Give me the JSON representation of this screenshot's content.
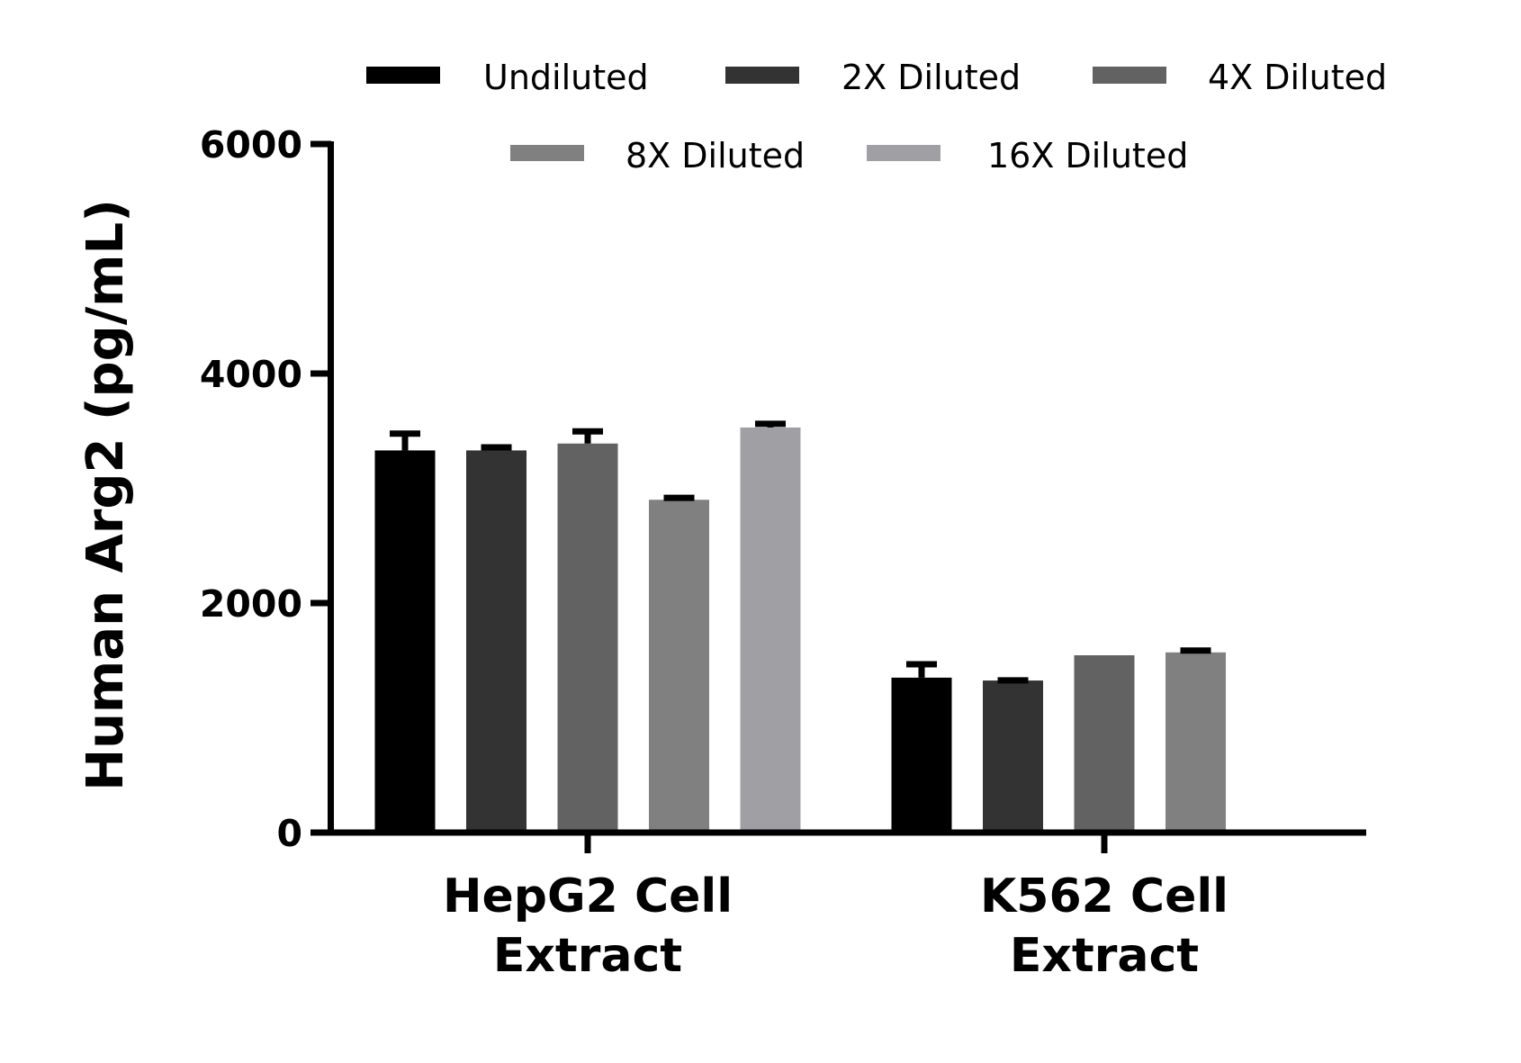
{
  "chart_data": {
    "type": "bar",
    "title": "",
    "xlabel": "",
    "ylabel": "Human Arg2 (pg/mL)",
    "ylim": [
      0,
      6000
    ],
    "yticks": [
      0,
      2000,
      4000,
      6000
    ],
    "grid": false,
    "legend_position": "top",
    "categories": [
      "HepG2 Cell Extract",
      "K562 Cell Extract"
    ],
    "category_lines": [
      [
        "HepG2 Cell",
        "Extract"
      ],
      [
        "K562 Cell",
        "Extract"
      ]
    ],
    "series": [
      {
        "name": "Undiluted",
        "color": "#000000",
        "values": [
          3330,
          1350
        ],
        "errors": [
          170,
          140
        ]
      },
      {
        "name": "2X Diluted",
        "color": "#333333",
        "values": [
          3330,
          1325
        ],
        "errors": [
          50,
          25
        ]
      },
      {
        "name": "4X Diluted",
        "color": "#626262",
        "values": [
          3390,
          1545
        ],
        "errors": [
          130,
          0
        ]
      },
      {
        "name": "8X Diluted",
        "color": "#808080",
        "values": [
          2900,
          1570
        ],
        "errors": [
          40,
          40
        ]
      },
      {
        "name": "16X Diluted",
        "color": "#A09FA3",
        "values": [
          3530,
          null
        ],
        "errors": [
          55,
          null
        ]
      }
    ]
  }
}
